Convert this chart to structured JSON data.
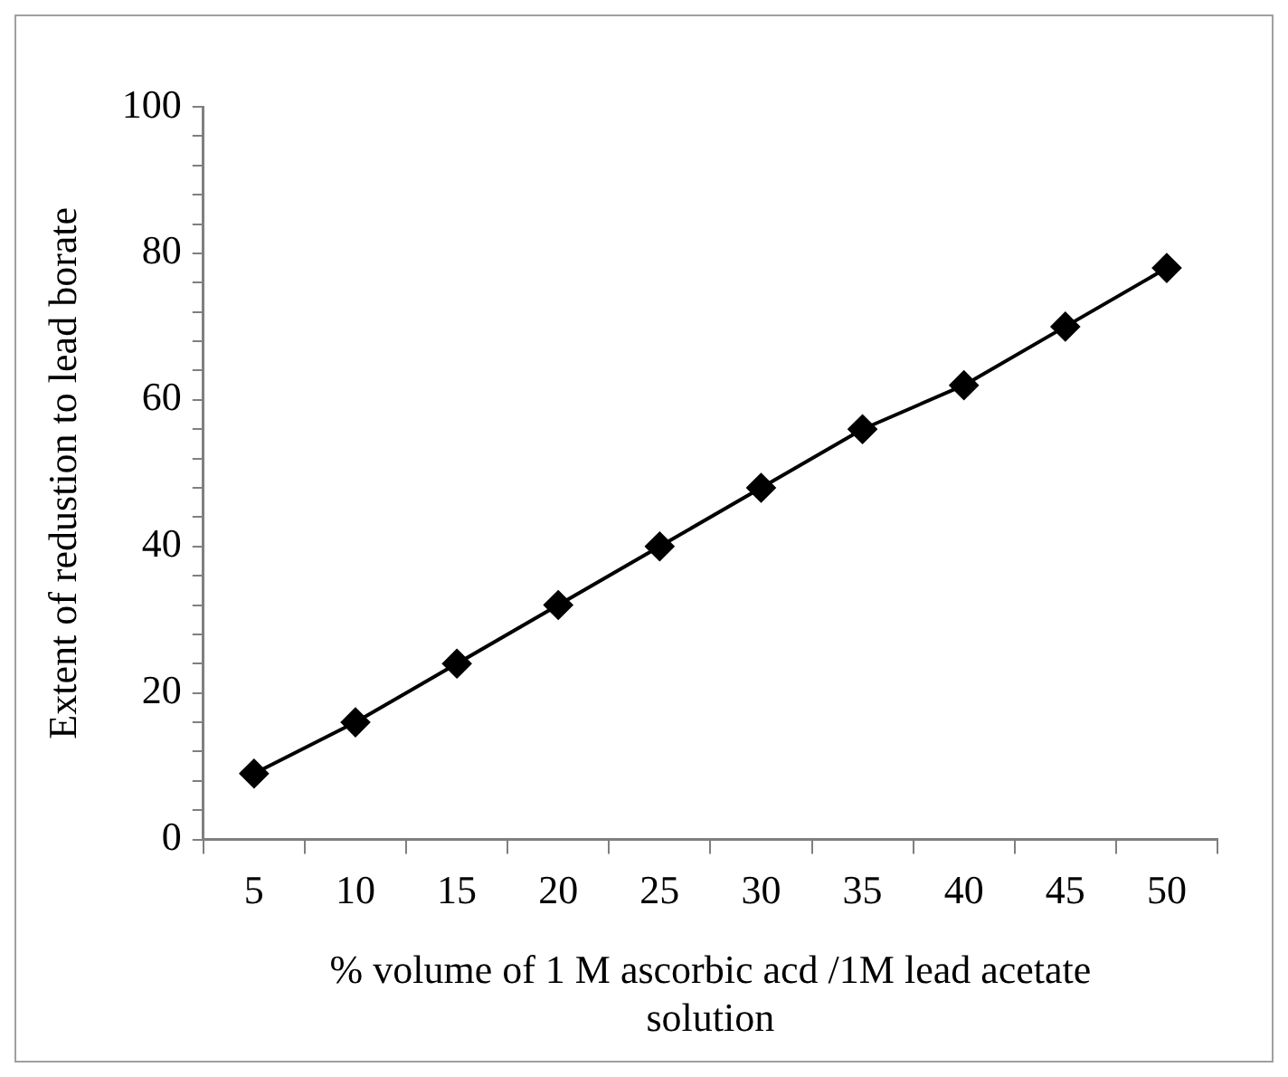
{
  "chart_data": {
    "type": "line",
    "xlabel": "% volume of 1 M ascorbic acd /1M lead acetate solution",
    "ylabel": "Extent of redustion to lead borate",
    "categories": [
      "5",
      "10",
      "15",
      "20",
      "25",
      "30",
      "35",
      "40",
      "45",
      "50"
    ],
    "series": [
      {
        "color": "#000000",
        "values": [
          9,
          16,
          24,
          32,
          40,
          48,
          56,
          62,
          70,
          78
        ]
      }
    ],
    "ylim": [
      0,
      100
    ],
    "yticks": [
      0,
      {
        "value": 4,
        "label": null
      },
      {
        "value": 8,
        "label": null
      },
      {
        "value": 12,
        "label": null
      },
      {
        "value": 16,
        "label": null
      },
      20,
      {
        "value": 24,
        "label": null
      },
      {
        "value": 28,
        "label": null
      },
      {
        "value": 32,
        "label": null
      },
      {
        "value": 36,
        "label": null
      },
      40,
      {
        "value": 44,
        "label": null
      },
      {
        "value": 48,
        "label": null
      },
      {
        "value": 52,
        "label": null
      },
      {
        "value": 56,
        "label": null
      },
      60,
      {
        "value": 64,
        "label": null
      },
      {
        "value": 68,
        "label": null
      },
      {
        "value": 72,
        "label": null
      },
      {
        "value": 76,
        "label": null
      },
      80,
      {
        "value": 84,
        "label": null
      },
      {
        "value": 88,
        "label": null
      },
      {
        "value": 92,
        "label": null
      },
      {
        "value": 96,
        "label": null
      },
      100
    ],
    "grid": false,
    "legend": false,
    "marker": "diamond",
    "line_style": "solid"
  }
}
